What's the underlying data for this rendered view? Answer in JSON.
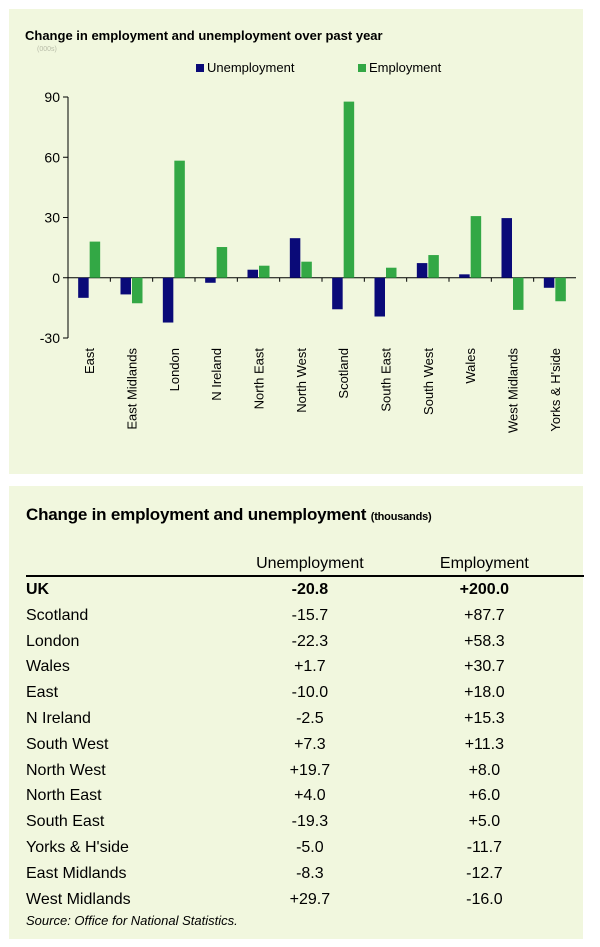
{
  "chart_data": {
    "type": "bar",
    "title": "Change in employment and unemployment over past year",
    "subtitle": "(000s)",
    "categories": [
      "East",
      "East Midlands",
      "London",
      "N Ireland",
      "North East",
      "North West",
      "Scotland",
      "South East",
      "South West",
      "Wales",
      "West Midlands",
      "Yorks & H'side"
    ],
    "series": [
      {
        "name": "Unemployment",
        "color": "#0a0a78",
        "values": [
          -10.0,
          -8.3,
          -22.3,
          -2.5,
          4.0,
          19.7,
          -15.7,
          -19.3,
          7.3,
          1.7,
          29.7,
          -5.0
        ]
      },
      {
        "name": "Employment",
        "color": "#33a845",
        "values": [
          18.0,
          -12.7,
          58.3,
          15.3,
          6.0,
          8.0,
          87.7,
          5.0,
          11.3,
          30.7,
          -16.0,
          -11.7
        ]
      }
    ],
    "yticks": [
      90,
      60,
      30,
      0,
      -30
    ],
    "ylim": [
      -30,
      90
    ],
    "legend_position": "top",
    "grid": false
  },
  "table": {
    "title": "Change in employment and unemployment",
    "title_unit": "(thousands)",
    "columns": [
      "",
      "Unemployment",
      "Employment"
    ],
    "uk_row": {
      "name": "UK",
      "unemployment": "-20.8",
      "employment": "+200.0"
    },
    "rows": [
      {
        "name": "Scotland",
        "unemployment": "-15.7",
        "employment": "+87.7"
      },
      {
        "name": "London",
        "unemployment": "-22.3",
        "employment": "+58.3"
      },
      {
        "name": "Wales",
        "unemployment": "+1.7",
        "employment": "+30.7"
      },
      {
        "name": "East",
        "unemployment": "-10.0",
        "employment": "+18.0"
      },
      {
        "name": "N Ireland",
        "unemployment": "-2.5",
        "employment": "+15.3"
      },
      {
        "name": "South West",
        "unemployment": "+7.3",
        "employment": "+11.3"
      },
      {
        "name": "North West",
        "unemployment": "+19.7",
        "employment": "+8.0"
      },
      {
        "name": "North East",
        "unemployment": "+4.0",
        "employment": "+6.0"
      },
      {
        "name": "South East",
        "unemployment": "-19.3",
        "employment": "+5.0"
      },
      {
        "name": "Yorks & H'side",
        "unemployment": "-5.0",
        "employment": "-11.7"
      },
      {
        "name": "East Midlands",
        "unemployment": "-8.3",
        "employment": "-12.7"
      },
      {
        "name": "West Midlands",
        "unemployment": "+29.7",
        "employment": "-16.0"
      }
    ],
    "source": "Source: Office for National Statistics."
  }
}
